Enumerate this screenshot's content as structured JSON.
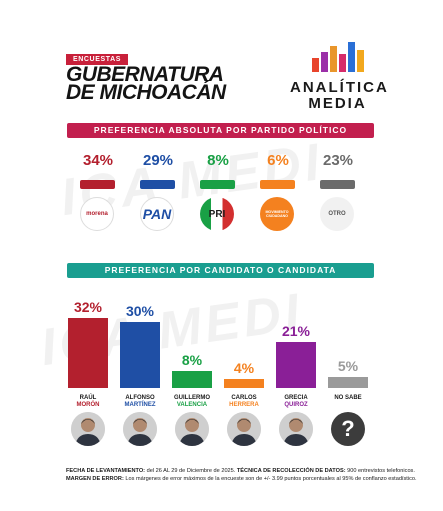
{
  "header": {
    "tag": "ENCUESTAS",
    "title_line1": "GUBERNATURA",
    "title_line2": "DE MICHOACÁN"
  },
  "logo": {
    "line1": "ANALÍTICA",
    "line2": "MEDIA",
    "bar_colors": [
      "#e8442c",
      "#9b2fa8",
      "#e9962b",
      "#d62b6a",
      "#2a6fd6",
      "#f2a81d"
    ]
  },
  "colors": {
    "morena": "#b3202e",
    "pan": "#1f4fa5",
    "pri": "#19a045",
    "mc": "#f4811f",
    "otro": "#6b6b6b",
    "grecia": "#8a1f97",
    "no_sabe": "#9a9a9a",
    "band_red": "#c21f4e",
    "band_teal": "#1a9e90"
  },
  "chart_data": [
    {
      "type": "bar",
      "title": "PREFERENCIA ABSOLUTA POR PARTIDO POLÍTICO",
      "categories": [
        "morena",
        "PAN",
        "PRI",
        "MOVIMIENTO CIUDADANO",
        "OTRO"
      ],
      "values": [
        34,
        29,
        8,
        6,
        23
      ],
      "labels": [
        "34%",
        "29%",
        "8%",
        "6%",
        "23%"
      ],
      "colors": [
        "#b3202e",
        "#1f4fa5",
        "#19a045",
        "#f4811f",
        "#6b6b6b"
      ]
    },
    {
      "type": "bar",
      "title": "PREFERENCIA POR CANDIDATO O CANDIDATA",
      "candidates": [
        {
          "first": "RAÚL",
          "last": "MORÓN",
          "value": 32,
          "label": "32%",
          "color": "#b3202e"
        },
        {
          "first": "ALFONSO",
          "last": "MARTÍNEZ",
          "value": 30,
          "label": "30%",
          "color": "#1f4fa5"
        },
        {
          "first": "GUILLERMO",
          "last": "VALENCIA",
          "value": 8,
          "label": "8%",
          "color": "#19a045"
        },
        {
          "first": "CARLOS",
          "last": "HERRERA",
          "value": 4,
          "label": "4%",
          "color": "#f4811f"
        },
        {
          "first": "GRECIA",
          "last": "QUIROZ",
          "value": 21,
          "label": "21%",
          "color": "#8a1f97"
        },
        {
          "first": "NO SABE",
          "last": "",
          "value": 5,
          "label": "5%",
          "color": "#9a9a9a"
        }
      ]
    }
  ],
  "footer": {
    "line1_label": "FECHA DE LEVANTAMIENTO:",
    "line1_text": " del  26 AL 29 de Diciembre de 2025. ",
    "line1_label2": "TÉCNICA DE RECOLECCIÓN DE DATOS:",
    "line1_text2": " 900 entrevistos telefonicos.",
    "line2_label": "MARGEN DE ERROR:",
    "line2_text": " Los márgenes de error máximos de la encueste son de +/- 3.99 puntos porcentuales al 95% de conflanzo estadístico."
  },
  "party_logos": {
    "morena": "morena",
    "pan": "PAN",
    "pri": "PRI",
    "mc": "MOVIMIENTO CIUDADANO",
    "otro": "OTRO"
  }
}
